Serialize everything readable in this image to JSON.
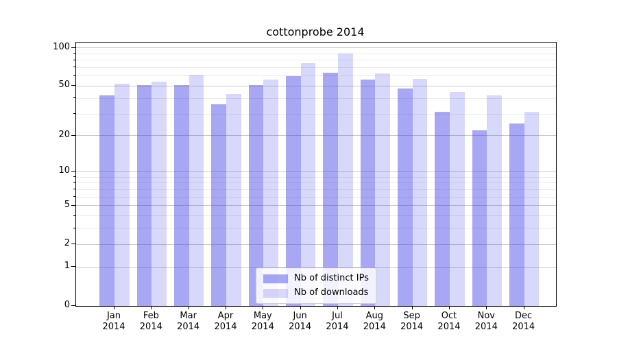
{
  "chart_data": {
    "type": "bar",
    "title": "cottonprobe 2014",
    "categories": [
      "Jan",
      "Feb",
      "Mar",
      "Apr",
      "May",
      "Jun",
      "Jul",
      "Aug",
      "Sep",
      "Oct",
      "Nov",
      "Dec"
    ],
    "x_year_label": "2014",
    "series": [
      {
        "name": "Nb of distinct IPs",
        "color": "rgba(60,60,230,0.45)",
        "values": [
          42,
          51,
          51,
          36,
          51,
          60,
          64,
          56,
          48,
          31,
          22,
          25
        ]
      },
      {
        "name": "Nb of downloads",
        "color": "rgba(60,60,230,0.20)",
        "values": [
          52,
          54,
          61,
          43,
          56,
          76,
          90,
          63,
          57,
          45,
          42,
          31
        ]
      }
    ],
    "yscale": "log1p",
    "ylim": [
      0,
      110
    ],
    "y_major_ticks": [
      100,
      50,
      20,
      10,
      5,
      2,
      1,
      0
    ],
    "y_minor_ticks": [
      90,
      80,
      70,
      60,
      40,
      30,
      9,
      8,
      7,
      6,
      4,
      3
    ],
    "grid": true,
    "legend_position": "lower center",
    "colors": {
      "major_grid": "#c9c9c9",
      "minor_grid": "#eaeaea",
      "spine": "#000000",
      "background": "#ffffff",
      "legend_border": "#cccccc"
    }
  }
}
